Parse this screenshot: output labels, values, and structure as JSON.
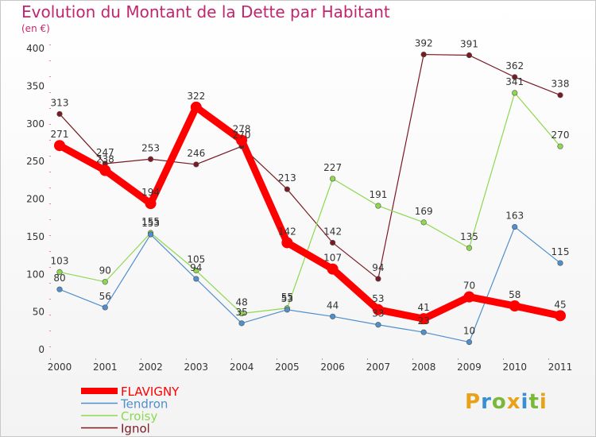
{
  "title": "Evolution du Montant de la Dette par Habitant",
  "subtitle": "(en €)",
  "brand": {
    "letters": [
      "P",
      "r",
      "o",
      "x",
      "i",
      "t",
      "i"
    ],
    "colors": [
      "#e8a21a",
      "#3a8fd0",
      "#7ab83a",
      "#e8a21a",
      "#3a8fd0",
      "#7ab83a",
      "#e8a21a"
    ]
  },
  "chart_data": {
    "type": "line",
    "title": "Evolution du Montant de la Dette par Habitant",
    "subtitle": "(en €)",
    "xlabel": "",
    "ylabel": "",
    "x": [
      "2000",
      "2001",
      "2002",
      "2003",
      "2004",
      "2005",
      "2006",
      "2007",
      "2008",
      "2009",
      "2010",
      "2011"
    ],
    "ylim": [
      0,
      400
    ],
    "yticks": [
      0,
      50,
      100,
      150,
      200,
      250,
      300,
      350,
      400
    ],
    "grid": false,
    "legend_position": "bottom-left",
    "series": [
      {
        "name": "Ignol",
        "color": "#7a1a22",
        "values": [
          313,
          247,
          253,
          246,
          270,
          213,
          142,
          94,
          392,
          391,
          362,
          338
        ]
      },
      {
        "name": "Croisy",
        "color": "#8ed84f",
        "values": [
          103,
          90,
          155,
          105,
          48,
          55,
          227,
          191,
          169,
          135,
          341,
          270
        ]
      },
      {
        "name": "Tendron",
        "color": "#4f8fcb",
        "values": [
          80,
          56,
          153,
          94,
          35,
          53,
          44,
          33,
          23,
          10,
          163,
          115
        ]
      },
      {
        "name": "FLAVIGNY",
        "color": "#ff0000",
        "values": [
          271,
          238,
          194,
          322,
          278,
          142,
          107,
          53,
          41,
          70,
          58,
          45
        ]
      }
    ],
    "legend_order": [
      "FLAVIGNY",
      "Tendron",
      "Croisy",
      "Ignol"
    ]
  }
}
